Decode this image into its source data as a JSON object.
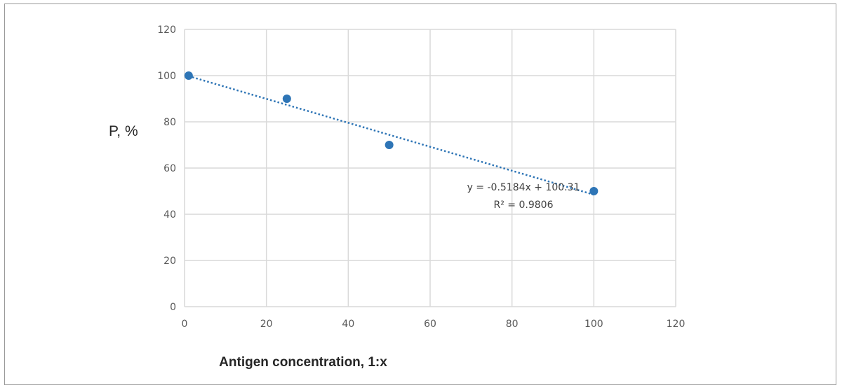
{
  "chart_data": {
    "type": "scatter",
    "title": "",
    "xlabel": "Antigen concentration, 1:x",
    "ylabel": "P, %",
    "xlim": [
      0,
      120
    ],
    "ylim": [
      0,
      120
    ],
    "x_ticks": [
      0,
      20,
      40,
      60,
      80,
      100,
      120
    ],
    "y_ticks": [
      0,
      20,
      40,
      60,
      80,
      100,
      120
    ],
    "grid": true,
    "series": [
      {
        "points": [
          {
            "x": 1,
            "y": 100
          },
          {
            "x": 25,
            "y": 90
          },
          {
            "x": 50,
            "y": 70
          },
          {
            "x": 100,
            "y": 50
          }
        ],
        "color": "#2e75b6"
      }
    ],
    "trendline": {
      "type": "linear",
      "slope": -0.5184,
      "intercept": 100.31,
      "x_range": [
        1,
        100
      ],
      "style": "dotted",
      "color": "#2e75b6",
      "equation_label": "y = -0.5184x + 100.31",
      "r2_label": "R² = 0.9806"
    }
  }
}
